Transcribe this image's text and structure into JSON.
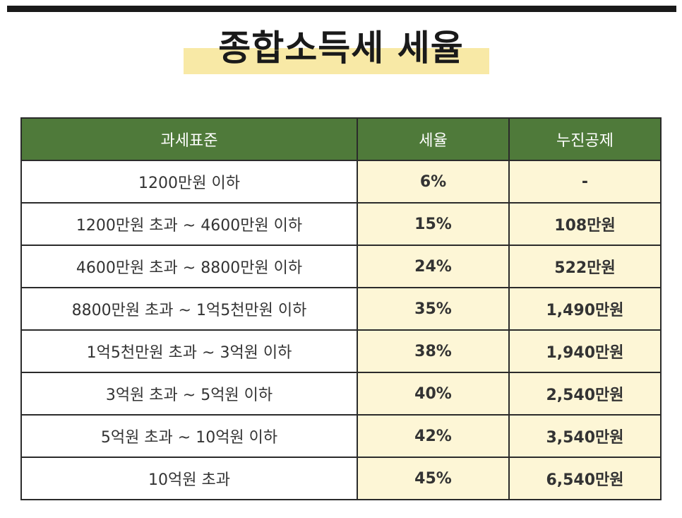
{
  "title": "종합소득세 세율",
  "colors": {
    "header_bg": "#4f7a3a",
    "highlight": "#f8e9a6",
    "cell_highlight": "#fdf6d6"
  },
  "table": {
    "headers": [
      "과세표준",
      "세율",
      "누진공제"
    ],
    "rows": [
      {
        "base": "1200만원 이하",
        "rate": "6%",
        "deduct": "-"
      },
      {
        "base": "1200만원 초과 ~ 4600만원 이하",
        "rate": "15%",
        "deduct": "108만원"
      },
      {
        "base": "4600만원 초과 ~ 8800만원 이하",
        "rate": "24%",
        "deduct": "522만원"
      },
      {
        "base": "8800만원 초과 ~ 1억5천만원 이하",
        "rate": "35%",
        "deduct": "1,490만원"
      },
      {
        "base": "1억5천만원 초과 ~ 3억원 이하",
        "rate": "38%",
        "deduct": "1,940만원"
      },
      {
        "base": "3억원 초과 ~ 5억원 이하",
        "rate": "40%",
        "deduct": "2,540만원"
      },
      {
        "base": "5억원 초과 ~ 10억원 이하",
        "rate": "42%",
        "deduct": "3,540만원"
      },
      {
        "base": "10억원 초과",
        "rate": "45%",
        "deduct": "6,540만원"
      }
    ]
  }
}
